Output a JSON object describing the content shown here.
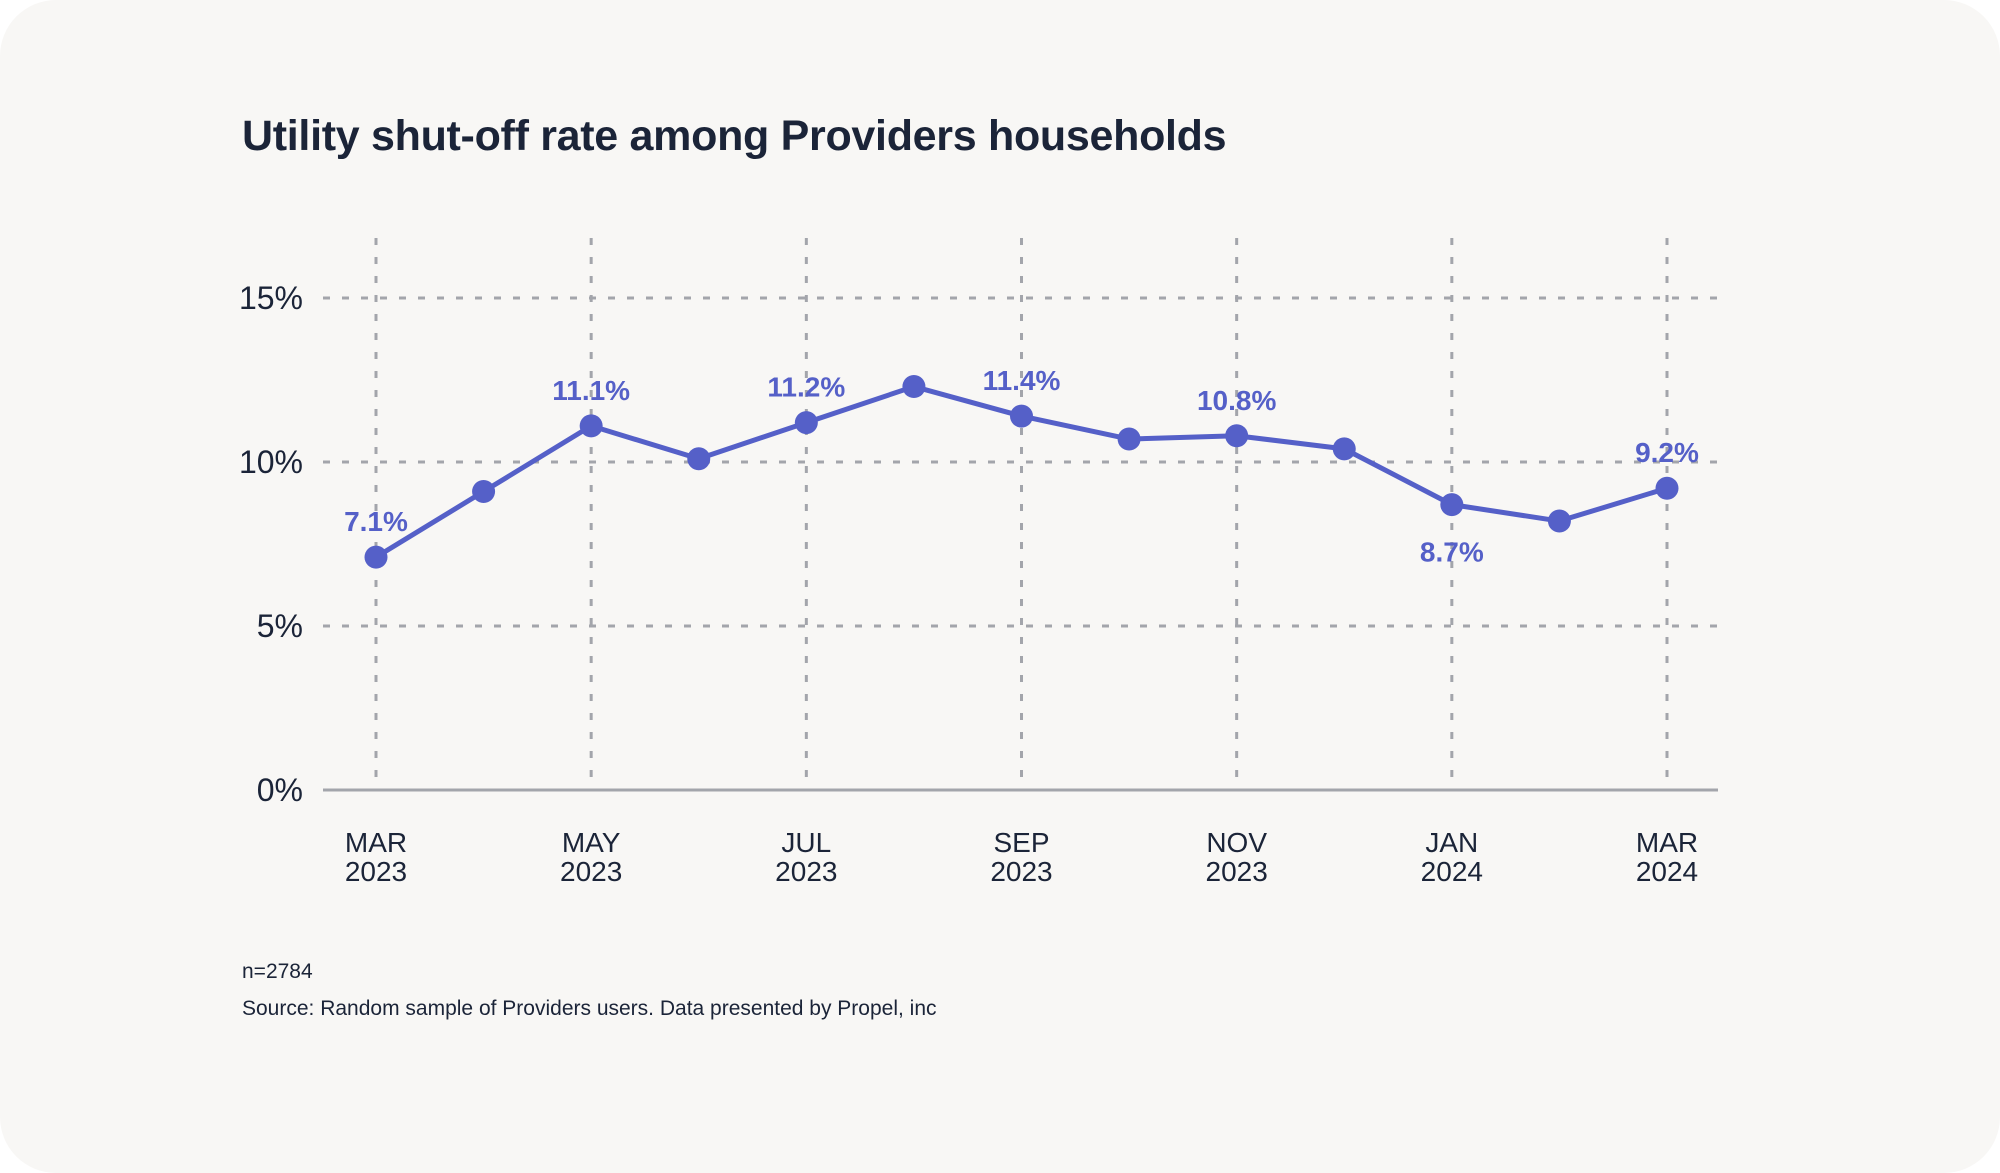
{
  "chart_data": {
    "type": "line",
    "title": "Utility shut-off rate among Providers households",
    "xlabel": "",
    "ylabel": "",
    "ylim": [
      0,
      15
    ],
    "yticks": [
      0,
      5,
      10,
      15
    ],
    "ytick_labels": [
      "0%",
      "5%",
      "10%",
      "15%"
    ],
    "grid": true,
    "x": [
      "Mar 2023",
      "Apr 2023",
      "May 2023",
      "Jun 2023",
      "Jul 2023",
      "Aug 2023",
      "Sep 2023",
      "Oct 2023",
      "Nov 2023",
      "Dec 2023",
      "Jan 2024",
      "Feb 2024",
      "Mar 2024"
    ],
    "xtick_labels": [
      {
        "index": 0,
        "month": "MAR",
        "year": "2023"
      },
      {
        "index": 2,
        "month": "MAY",
        "year": "2023"
      },
      {
        "index": 4,
        "month": "JUL",
        "year": "2023"
      },
      {
        "index": 6,
        "month": "SEP",
        "year": "2023"
      },
      {
        "index": 8,
        "month": "NOV",
        "year": "2023"
      },
      {
        "index": 10,
        "month": "JAN",
        "year": "2024"
      },
      {
        "index": 12,
        "month": "MAR",
        "year": "2024"
      }
    ],
    "series": [
      {
        "name": "Utility shut-off rate",
        "color": "#5560c8",
        "values": [
          7.1,
          9.1,
          11.1,
          10.1,
          11.2,
          12.3,
          11.4,
          10.7,
          10.8,
          10.4,
          8.7,
          8.2,
          9.2
        ]
      }
    ],
    "data_labels": [
      {
        "index": 0,
        "text": "7.1%",
        "position": "above"
      },
      {
        "index": 2,
        "text": "11.1%",
        "position": "above"
      },
      {
        "index": 4,
        "text": "11.2%",
        "position": "above"
      },
      {
        "index": 6,
        "text": "11.4%",
        "position": "above"
      },
      {
        "index": 8,
        "text": "10.8%",
        "position": "above"
      },
      {
        "index": 10,
        "text": "8.7%",
        "position": "below"
      },
      {
        "index": 12,
        "text": "9.2%",
        "position": "above"
      }
    ]
  },
  "footnotes": {
    "sample_size": "n=2784",
    "source": "Source: Random sample of Providers users. Data presented by Propel, inc"
  },
  "colors": {
    "background": "#f8f7f5",
    "text": "#1b2438",
    "accent": "#5560c8",
    "grid": "#a3a5ab"
  }
}
